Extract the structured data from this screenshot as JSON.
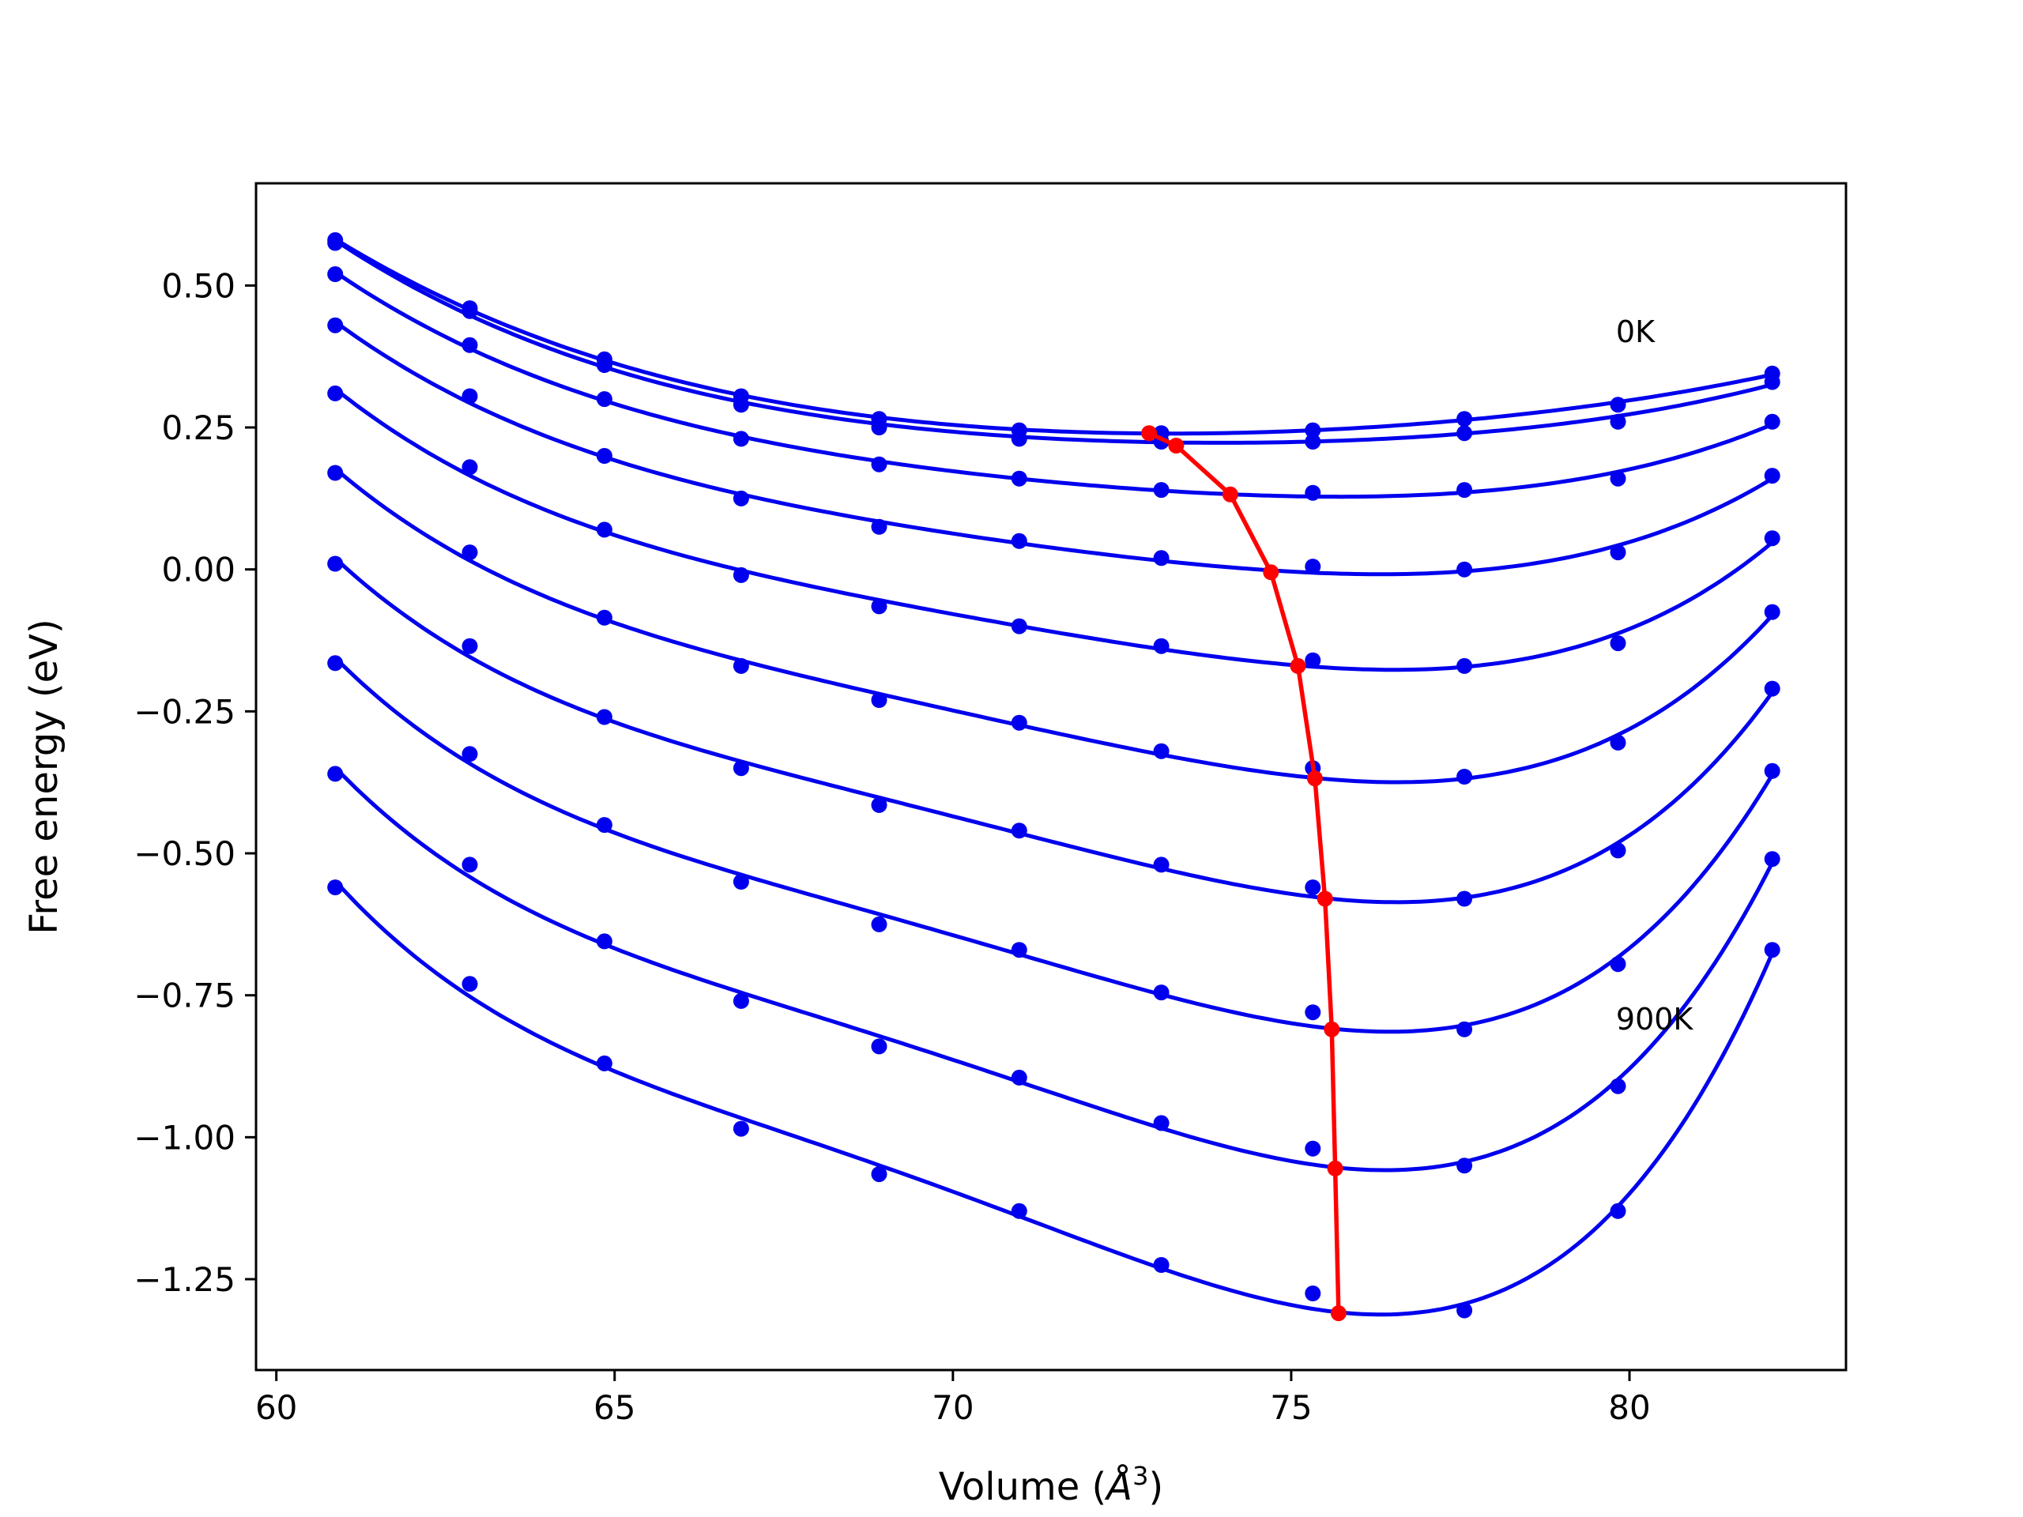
{
  "chart_data": {
    "type": "line",
    "xlabel_prefix": "Volume (",
    "xlabel_symbol": "Å",
    "xlabel_exp": "3",
    "xlabel_suffix": ")",
    "ylabel": "Free energy (eV)",
    "xlim": [
      59.7,
      83.2
    ],
    "ylim": [
      -1.41,
      0.68
    ],
    "xticks": [
      60,
      65,
      70,
      75,
      80
    ],
    "xtick_labels": [
      "60",
      "65",
      "70",
      "75",
      "80"
    ],
    "yticks": [
      0.5,
      0.25,
      0.0,
      -0.25,
      -0.5,
      -0.75,
      -1.0,
      -1.25
    ],
    "ytick_labels": [
      "0.50",
      "0.25",
      "0.00",
      "−0.25",
      "−0.50",
      "−0.75",
      "−1.00",
      "−1.25"
    ],
    "grid": false,
    "colors": {
      "fit": "#0000ee",
      "points": "#0000ee",
      "minimum": "#ff0000"
    },
    "annotations": [
      {
        "text": "0K",
        "x": 79.8,
        "y": 0.4
      },
      {
        "text": "900K",
        "x": 79.8,
        "y": -0.81
      }
    ],
    "volumes": [
      60.87,
      62.86,
      64.85,
      66.87,
      68.91,
      70.98,
      73.08,
      75.32,
      77.56,
      79.83,
      82.11
    ],
    "series": [
      {
        "points": [
          0.58,
          0.46,
          0.37,
          0.305,
          0.265,
          0.245,
          0.24,
          0.245,
          0.265,
          0.29,
          0.345
        ],
        "fit_min_volume": 73.5,
        "fit_min_energy": 0.24
      },
      {
        "points": [
          0.575,
          0.455,
          0.36,
          0.29,
          0.25,
          0.23,
          0.225,
          0.225,
          0.24,
          0.26,
          0.33
        ],
        "fit_min_volume": 74.2,
        "fit_min_energy": 0.225
      },
      {
        "points": [
          0.52,
          0.395,
          0.3,
          0.23,
          0.185,
          0.16,
          0.14,
          0.135,
          0.14,
          0.16,
          0.26
        ],
        "fit_min_volume": 74.6,
        "fit_min_energy": 0.13
      },
      {
        "points": [
          0.43,
          0.305,
          0.2,
          0.125,
          0.075,
          0.05,
          0.02,
          0.005,
          0.0,
          0.03,
          0.165
        ],
        "fit_min_volume": 75.0,
        "fit_min_energy": -0.005
      },
      {
        "points": [
          0.31,
          0.18,
          0.07,
          -0.01,
          -0.065,
          -0.1,
          -0.135,
          -0.16,
          -0.17,
          -0.13,
          0.055
        ],
        "fit_min_volume": 75.2,
        "fit_min_energy": -0.17
      },
      {
        "points": [
          0.17,
          0.03,
          -0.085,
          -0.17,
          -0.23,
          -0.27,
          -0.32,
          -0.35,
          -0.365,
          -0.305,
          -0.075
        ],
        "fit_min_volume": 75.4,
        "fit_min_energy": -0.37
      },
      {
        "points": [
          0.01,
          -0.135,
          -0.26,
          -0.35,
          -0.415,
          -0.46,
          -0.52,
          -0.56,
          -0.58,
          -0.495,
          -0.21
        ],
        "fit_min_volume": 75.5,
        "fit_min_energy": -0.58
      },
      {
        "points": [
          -0.165,
          -0.325,
          -0.45,
          -0.55,
          -0.625,
          -0.67,
          -0.745,
          -0.78,
          -0.81,
          -0.695,
          -0.355
        ],
        "fit_min_volume": 75.6,
        "fit_min_energy": -0.81
      },
      {
        "points": [
          -0.36,
          -0.52,
          -0.655,
          -0.76,
          -0.84,
          -0.895,
          -0.975,
          -1.02,
          -1.05,
          -0.91,
          -0.51
        ],
        "fit_min_volume": 75.6,
        "fit_min_energy": -1.055
      },
      {
        "points": [
          -0.56,
          -0.73,
          -0.87,
          -0.985,
          -1.065,
          -1.13,
          -1.225,
          -1.275,
          -1.305,
          -1.13,
          -0.67
        ],
        "fit_min_volume": 75.7,
        "fit_min_energy": -1.31
      }
    ],
    "minimum_path": {
      "x": [
        72.9,
        73.3,
        74.1,
        74.7,
        75.1,
        75.35,
        75.5,
        75.6,
        75.65,
        75.7
      ],
      "y": [
        0.24,
        0.218,
        0.132,
        -0.005,
        -0.17,
        -0.368,
        -0.58,
        -0.81,
        -1.055,
        -1.31
      ]
    }
  }
}
